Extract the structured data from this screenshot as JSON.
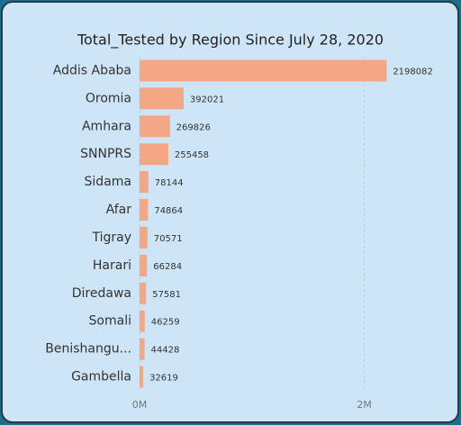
{
  "chart_data": {
    "type": "bar",
    "orientation": "horizontal",
    "title": "Total_Tested by Region Since July 28, 2020",
    "categories": [
      "Addis Ababa",
      "Oromia",
      "Amhara",
      "SNNPRS",
      "Sidama",
      "Afar",
      "Tigray",
      "Harari",
      "Diredawa",
      "Somali",
      "Benishangu...",
      "Gambella"
    ],
    "values": [
      2198082,
      392021,
      269826,
      255458,
      78144,
      74864,
      70571,
      66284,
      57581,
      46259,
      44428,
      32619
    ],
    "color": "#f3a785",
    "xlim": [
      0,
      2500000
    ],
    "xticks": [
      {
        "value": 0,
        "label": "0M"
      },
      {
        "value": 2000000,
        "label": "2M"
      }
    ],
    "grid": true
  }
}
